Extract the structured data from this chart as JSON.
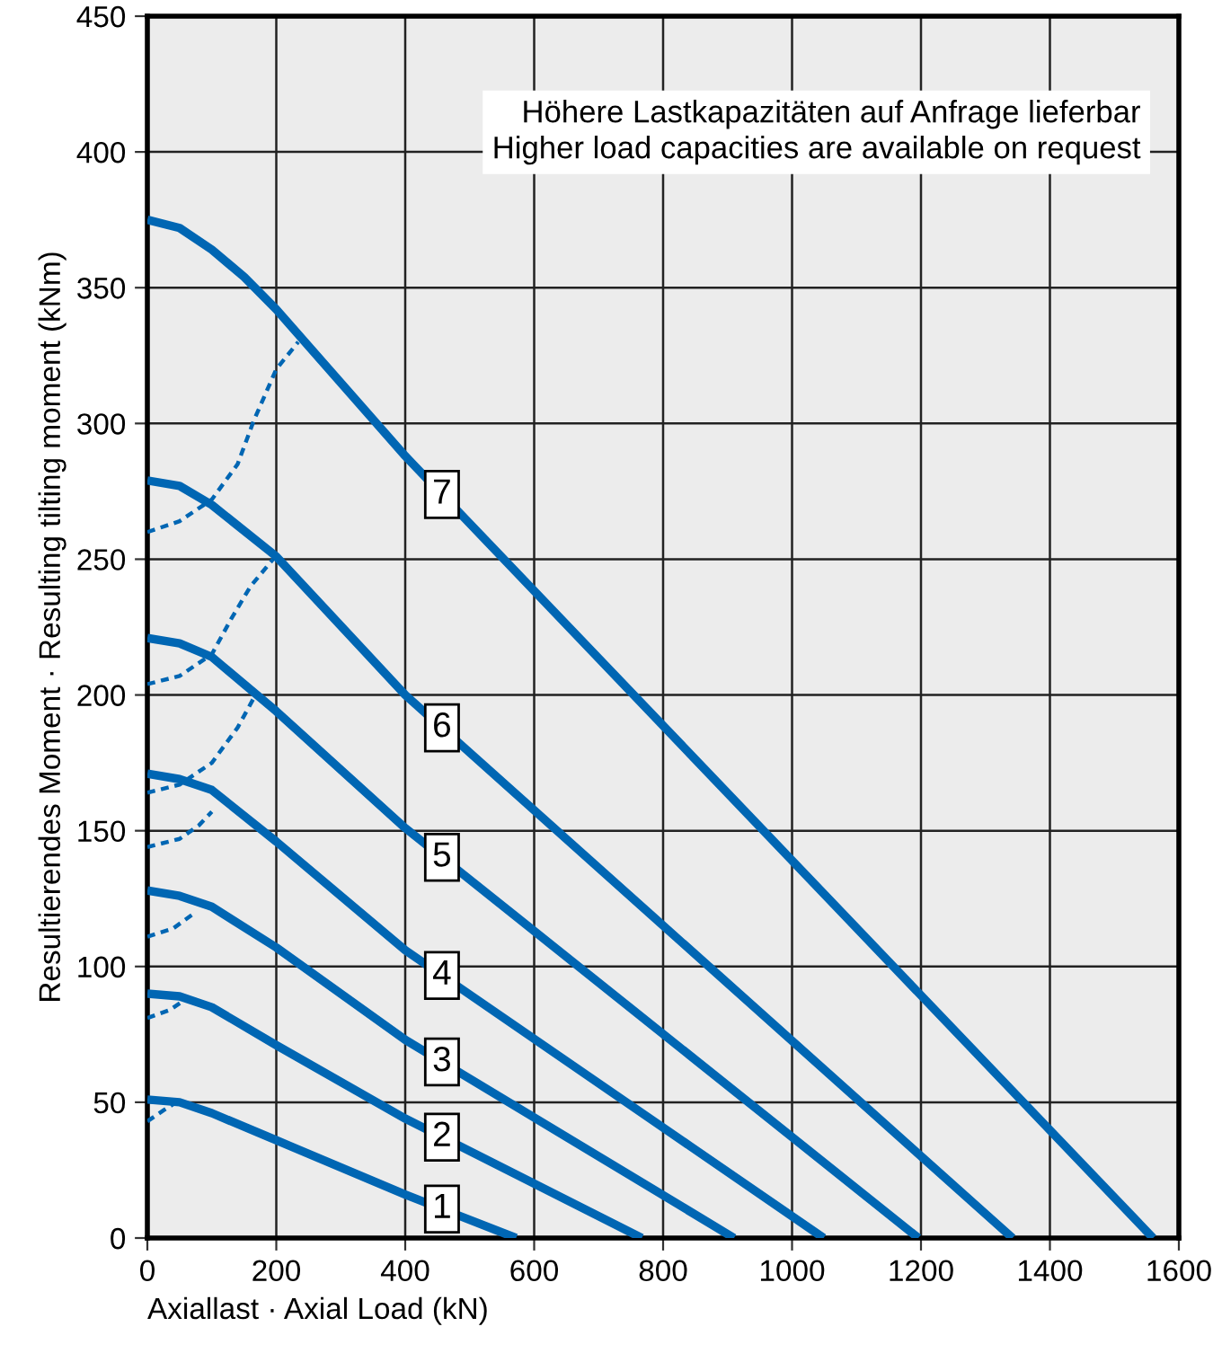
{
  "chart_data": {
    "type": "line",
    "xlabel": "Axiallast · Axial Load (kN)",
    "ylabel": "Resultierendes Moment · Resulting tilting moment (kNm)",
    "annotations": [
      "Höhere Lastkapazitäten auf Anfrage lieferbar\nHigher load capacities are available on request"
    ],
    "xlim": [
      0,
      1600
    ],
    "xticks": [
      0,
      200,
      400,
      600,
      800,
      1000,
      1200,
      1400,
      1600
    ],
    "ylim": [
      0,
      450
    ],
    "yticks": [
      0,
      50,
      100,
      150,
      200,
      250,
      300,
      350,
      400,
      450
    ],
    "grid": true,
    "legend": false,
    "marker": "none",
    "series": [
      {
        "name": "1",
        "color": "#0066b3",
        "line_style": "solid",
        "x": [
          0,
          50,
          100,
          200,
          400,
          572
        ],
        "values": [
          51,
          50,
          46,
          36,
          16,
          0
        ]
      },
      {
        "name": "2",
        "color": "#0066b3",
        "line_style": "solid",
        "x": [
          0,
          50,
          100,
          200,
          400,
          767
        ],
        "values": [
          90,
          89,
          85,
          71,
          44,
          0
        ]
      },
      {
        "name": "3",
        "color": "#0066b3",
        "line_style": "solid",
        "x": [
          0,
          50,
          100,
          200,
          400,
          910
        ],
        "values": [
          128,
          126,
          122,
          107,
          73,
          0
        ]
      },
      {
        "name": "4",
        "color": "#0066b3",
        "line_style": "solid",
        "x": [
          0,
          50,
          100,
          200,
          400,
          1049
        ],
        "values": [
          171,
          169,
          165,
          146,
          106,
          0
        ]
      },
      {
        "name": "5",
        "color": "#0066b3",
        "line_style": "solid",
        "x": [
          0,
          50,
          100,
          200,
          400,
          1196
        ],
        "values": [
          221,
          219,
          214,
          194,
          151,
          0
        ]
      },
      {
        "name": "6",
        "color": "#0066b3",
        "line_style": "solid",
        "x": [
          0,
          50,
          100,
          200,
          400,
          1342
        ],
        "values": [
          279,
          277,
          270,
          251,
          200,
          0
        ]
      },
      {
        "name": "7",
        "color": "#0066b3",
        "line_style": "solid",
        "x": [
          0,
          50,
          100,
          150,
          200,
          400,
          1560
        ],
        "values": [
          375,
          372,
          364,
          354,
          342,
          288,
          0
        ]
      },
      {
        "color": "#0066b3",
        "line_style": "dotted",
        "x": [
          0,
          50,
          100,
          140,
          165,
          200,
          234
        ],
        "values": [
          260,
          264,
          272,
          285,
          301,
          320,
          330
        ]
      },
      {
        "color": "#0066b3",
        "line_style": "dotted",
        "x": [
          0,
          50,
          100,
          130,
          160,
          195
        ],
        "values": [
          204,
          207,
          215,
          228,
          240,
          250
        ]
      },
      {
        "color": "#0066b3",
        "line_style": "dotted",
        "x": [
          0,
          50,
          100,
          140,
          170
        ],
        "values": [
          164,
          167,
          175,
          188,
          201
        ]
      },
      {
        "color": "#0066b3",
        "line_style": "dotted",
        "x": [
          0,
          50,
          80,
          100
        ],
        "values": [
          144,
          147,
          152,
          157
        ]
      },
      {
        "color": "#0066b3",
        "line_style": "dotted",
        "x": [
          0,
          40,
          75
        ],
        "values": [
          111,
          114,
          120
        ]
      },
      {
        "color": "#0066b3",
        "line_style": "dotted",
        "x": [
          0,
          35,
          60
        ],
        "values": [
          81,
          84,
          88
        ]
      },
      {
        "color": "#0066b3",
        "line_style": "dotted",
        "x": [
          0,
          25,
          45
        ],
        "values": [
          43,
          47,
          50
        ]
      }
    ]
  }
}
